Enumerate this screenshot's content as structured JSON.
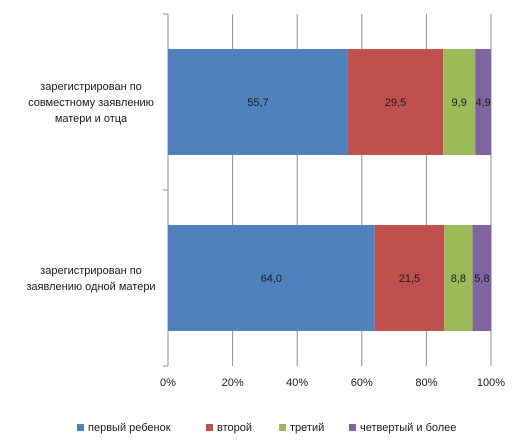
{
  "chart_data": {
    "type": "bar",
    "orientation": "horizontal",
    "stacked": "percent",
    "title": "",
    "xlabel": "",
    "ylabel": "",
    "xlim": [
      0,
      100
    ],
    "x_ticks": [
      "0%",
      "20%",
      "40%",
      "60%",
      "80%",
      "100%"
    ],
    "x_tick_values": [
      0,
      20,
      40,
      60,
      80,
      100
    ],
    "grid": true,
    "legend_position": "bottom",
    "categories": [
      "зарегистрирован по совместному заявлению матери и отца",
      "зарегистрирован по заявлению одной матери"
    ],
    "category_lines": [
      [
        "зарегистрирован по",
        "совместному заявлению",
        "матери и отца"
      ],
      [
        "зарегистрирован по",
        "заявлению одной матери"
      ]
    ],
    "series": [
      {
        "name": "первый ребенок",
        "color": "#4f81bd",
        "values": [
          55.7,
          64.0
        ],
        "labels": [
          "55,7",
          "64,0"
        ]
      },
      {
        "name": "второй",
        "color": "#c0504d",
        "values": [
          29.5,
          21.5
        ],
        "labels": [
          "29,5",
          "21,5"
        ]
      },
      {
        "name": "третий",
        "color": "#9bbb59",
        "values": [
          9.9,
          8.8
        ],
        "labels": [
          "9,9",
          "8,8"
        ]
      },
      {
        "name": "четвертый и более",
        "color": "#8064a2",
        "values": [
          4.9,
          5.8
        ],
        "labels": [
          "4,9",
          "5,8"
        ]
      }
    ]
  }
}
